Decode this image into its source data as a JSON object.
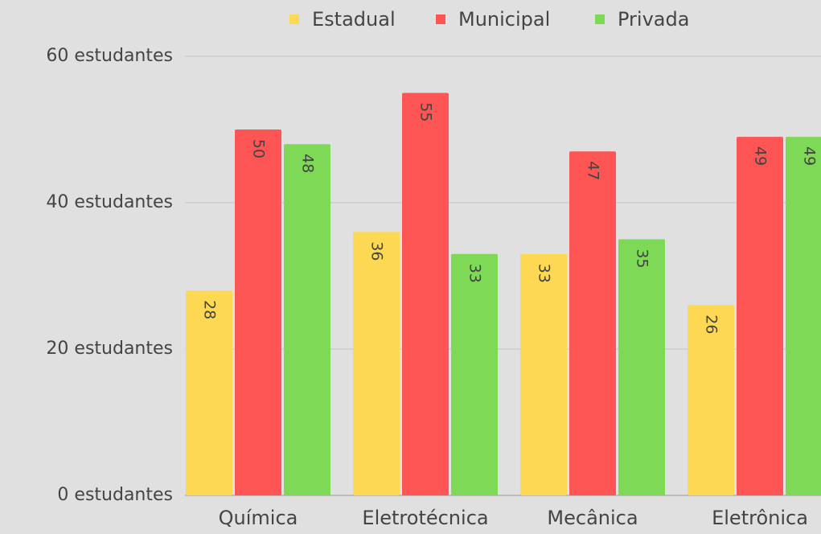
{
  "chart_data": {
    "type": "bar",
    "categories": [
      "Química",
      "Eletrotécnica",
      "Mecânica",
      "Eletrônica"
    ],
    "series": [
      {
        "name": "Estadual",
        "color": "#fdd853",
        "values": [
          28,
          36,
          33,
          26
        ]
      },
      {
        "name": "Municipal",
        "color": "#fd5454",
        "values": [
          50,
          55,
          47,
          49
        ]
      },
      {
        "name": "Privada",
        "color": "#7ed957",
        "values": [
          48,
          33,
          35,
          49
        ]
      }
    ],
    "ylim": [
      0,
      60
    ],
    "yticks": [
      {
        "value": 0,
        "label": "0 estudantes"
      },
      {
        "value": 20,
        "label": "20 estudantes"
      },
      {
        "value": 40,
        "label": "40 estudantes"
      },
      {
        "value": 60,
        "label": "60 estudantes"
      }
    ],
    "grid": true,
    "legend": "top"
  }
}
